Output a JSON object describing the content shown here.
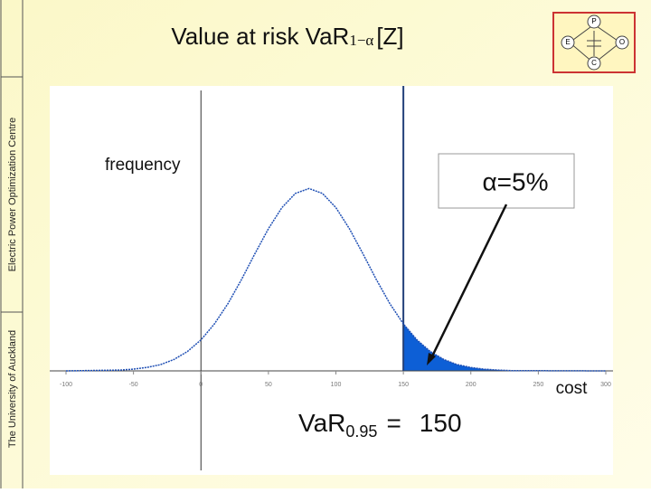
{
  "sidebar": {
    "university": "The University of Auckland",
    "centre": "Electric Power Optimization Centre"
  },
  "logo": {
    "top": "P",
    "left": "E",
    "right": "O",
    "bottom": "C"
  },
  "chart_data": {
    "type": "line",
    "title": "Value at risk VaR",
    "title_subscript": "1−α",
    "title_suffix": "[Z]",
    "y_label": "frequency",
    "x_label": "cost",
    "annotation": "α=5%",
    "var_text": "VaR",
    "var_subscript": "0.95",
    "var_equals": "=",
    "var": 150,
    "color": "#1f4fb4",
    "tail_color": "#0d5fd6",
    "x": [
      -100,
      -60,
      -50,
      -40,
      -30,
      -20,
      -10,
      0,
      10,
      20,
      30,
      40,
      50,
      60,
      70,
      80,
      90,
      100,
      110,
      120,
      130,
      140,
      150,
      160,
      170,
      180,
      190,
      200,
      210,
      220,
      230,
      300
    ],
    "values": [
      0.0001,
      0.003,
      0.006,
      0.012,
      0.022,
      0.04,
      0.068,
      0.109,
      0.165,
      0.236,
      0.32,
      0.411,
      0.499,
      0.573,
      0.623,
      0.64,
      0.623,
      0.573,
      0.499,
      0.411,
      0.32,
      0.236,
      0.165,
      0.109,
      0.068,
      0.04,
      0.022,
      0.012,
      0.006,
      0.003,
      0.001,
      0
    ],
    "xlim": [
      -100,
      300
    ],
    "xticks": [
      -100,
      -50,
      0,
      50,
      100,
      150,
      200,
      250,
      300
    ],
    "ylim": [
      0,
      1
    ]
  }
}
